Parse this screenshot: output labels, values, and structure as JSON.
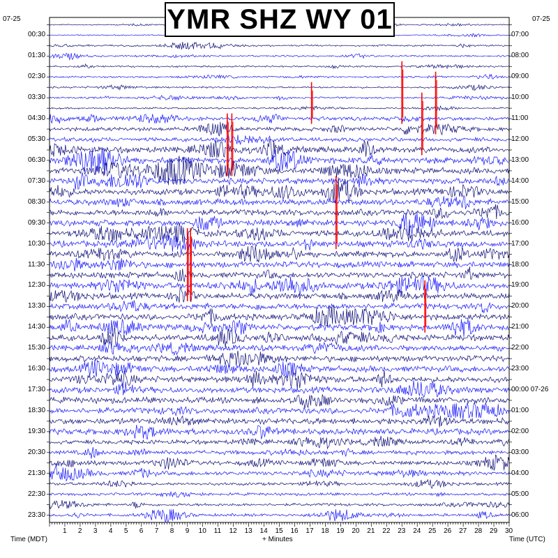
{
  "chart_data": {
    "type": "line",
    "title": "YMR SHZ WY 01",
    "xlabel": "+ Minutes",
    "left_axis_label": "Time (MDT)",
    "right_axis_label": "Time (UTC)",
    "left_date": "07-25",
    "right_date_top": "07-25",
    "right_date_rollover": "07-26",
    "xlim": [
      0,
      30
    ],
    "x_ticks": [
      "1",
      "2",
      "3",
      "4",
      "5",
      "6",
      "7",
      "8",
      "9",
      "10",
      "11",
      "12",
      "13",
      "14",
      "15",
      "16",
      "17",
      "18",
      "19",
      "20",
      "21",
      "22",
      "23",
      "24",
      "25",
      "26",
      "27",
      "28",
      "29",
      "30"
    ],
    "left_tick_labels": [
      "00:30",
      "01:30",
      "02:30",
      "03:30",
      "04:30",
      "05:30",
      "06:30",
      "07:30",
      "08:30",
      "09:30",
      "10:30",
      "11:30",
      "12:30",
      "13:30",
      "14:30",
      "15:30",
      "16:30",
      "17:30",
      "18:30",
      "19:30",
      "20:30",
      "21:30",
      "22:30",
      "23:30"
    ],
    "right_tick_labels": [
      "07:00",
      "08:00",
      "09:00",
      "10:00",
      "11:00",
      "12:00",
      "13:00",
      "14:00",
      "15:00",
      "16:00",
      "17:00",
      "18:00",
      "19:00",
      "20:00",
      "21:00",
      "22:00",
      "23:00",
      "00:00",
      "01:00",
      "02:00",
      "03:00",
      "04:00",
      "05:00",
      "06:00"
    ],
    "rollover_row": 17,
    "trace_count": 48,
    "trace_colors": [
      "#0a0a78",
      "#1414ff"
    ],
    "clip_color": "#ff0000",
    "grid": true,
    "clipped_events": [
      {
        "minute": 23.0,
        "rows": [
          4,
          9
        ]
      },
      {
        "minute": 25.2,
        "rows": [
          5,
          10
        ]
      },
      {
        "minute": 17.1,
        "rows": [
          6,
          9
        ]
      },
      {
        "minute": 11.6,
        "rows": [
          9,
          14
        ]
      },
      {
        "minute": 11.9,
        "rows": [
          9,
          14
        ]
      },
      {
        "minute": 24.3,
        "rows": [
          7,
          12
        ]
      },
      {
        "minute": 18.7,
        "rows": [
          15,
          21
        ]
      },
      {
        "minute": 9.0,
        "rows": [
          20,
          26
        ]
      },
      {
        "minute": 9.2,
        "rows": [
          20,
          26
        ]
      },
      {
        "minute": 24.5,
        "rows": [
          25,
          29
        ]
      }
    ]
  }
}
